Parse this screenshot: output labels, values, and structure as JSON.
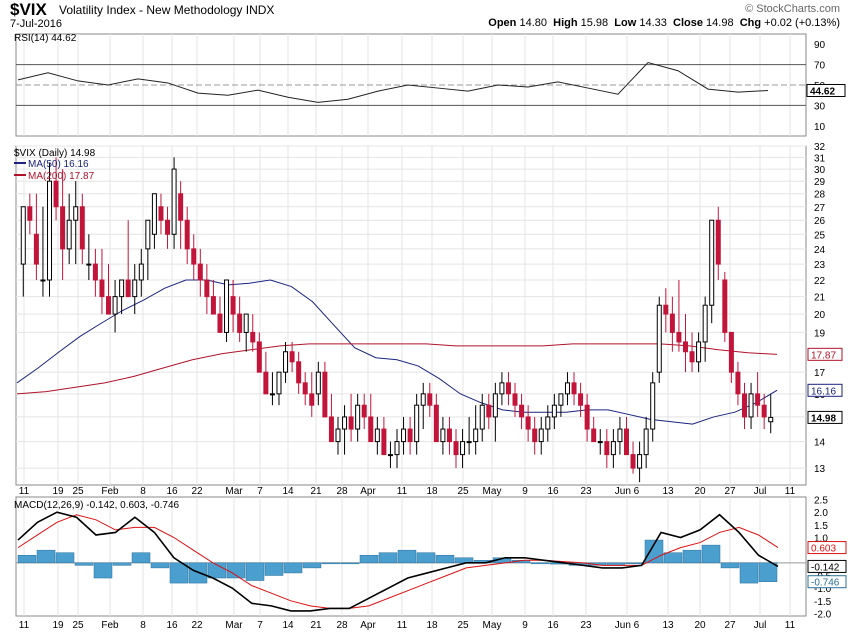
{
  "header": {
    "symbol": "$VIX",
    "name": "Volatility Index - New Methodology  INDX",
    "date": "7-Jul-2016",
    "source": "© StockCharts.com",
    "open_label": "Open",
    "open": "14.80",
    "high_label": "High",
    "high": "15.98",
    "low_label": "Low",
    "low": "14.33",
    "close_label": "Close",
    "close": "14.98",
    "chg_label": "Chg",
    "chg": "+0.02 (+0.13%)"
  },
  "chart_data": [
    {
      "type": "line",
      "legend": "RSI(14) 44.62",
      "y_ticks": [
        10,
        30,
        50,
        70,
        90
      ],
      "ylim": [
        0,
        100
      ],
      "levels": [
        30,
        50,
        70
      ],
      "last_label": "44.62",
      "x": [
        "Jan 11",
        "Jan 19",
        "Jan 25",
        "Feb",
        "Feb 8",
        "Feb 16",
        "Feb 22",
        "Mar",
        "Mar 7",
        "Mar 14",
        "Mar 21",
        "Mar 28",
        "Apr",
        "Apr 11",
        "Apr 18",
        "Apr 25",
        "May",
        "May 9",
        "May 16",
        "May 23",
        "Jun 6",
        "Jun 13",
        "Jun 20",
        "Jun 27",
        "Jul",
        "Jul 7"
      ],
      "values": [
        55,
        62,
        54,
        50,
        56,
        52,
        42,
        40,
        45,
        38,
        33,
        36,
        44,
        50,
        47,
        44,
        50,
        48,
        53,
        47,
        41,
        72,
        64,
        46,
        43,
        44.62
      ]
    },
    {
      "type": "candlestick",
      "legend": "$VIX (Daily) 14.98",
      "y_ticks": [
        13,
        14,
        15,
        16,
        17,
        19,
        20,
        21,
        22,
        23,
        24,
        25,
        26,
        27,
        28,
        29,
        30,
        31,
        32
      ],
      "ylim_log": [
        12.4,
        32
      ],
      "last_label": "14.98",
      "x_ticks": [
        "11",
        "19",
        "25",
        "Feb",
        "8",
        "16",
        "22",
        "Mar",
        "7",
        "14",
        "21",
        "28",
        "Apr",
        "11",
        "18",
        "25",
        "May",
        "9",
        "16",
        "23",
        "Jun 6",
        "13",
        "20",
        "27",
        "Jul",
        "11"
      ],
      "ohlc": [
        [
          23,
          27,
          21,
          27
        ],
        [
          27,
          28,
          25,
          26
        ],
        [
          25,
          28,
          22,
          23
        ],
        [
          22,
          27,
          21,
          22
        ],
        [
          22,
          30.5,
          21,
          29
        ],
        [
          29,
          31,
          26,
          27
        ],
        [
          27,
          30,
          22,
          24
        ],
        [
          24,
          28,
          23,
          26
        ],
        [
          26,
          29,
          23,
          27
        ],
        [
          27,
          28,
          23,
          24
        ],
        [
          23,
          25,
          22,
          23
        ],
        [
          23,
          24,
          21,
          22
        ],
        [
          22,
          24,
          20,
          21
        ],
        [
          21,
          23,
          20,
          20
        ],
        [
          20,
          22,
          19,
          21
        ],
        [
          21,
          22,
          20,
          22
        ],
        [
          22,
          26,
          21,
          21
        ],
        [
          21,
          23,
          20,
          22
        ],
        [
          22,
          24,
          21,
          23
        ],
        [
          24,
          26,
          22,
          26
        ],
        [
          25,
          28,
          24,
          28
        ],
        [
          27,
          28,
          25,
          26
        ],
        [
          26,
          27,
          24,
          25
        ],
        [
          25,
          31,
          24,
          30
        ],
        [
          28,
          29,
          24,
          26
        ],
        [
          26,
          27,
          23,
          24
        ],
        [
          24,
          25,
          22,
          23
        ],
        [
          23,
          24,
          21,
          22
        ],
        [
          22,
          23,
          20,
          21
        ],
        [
          21,
          22,
          20,
          20
        ],
        [
          20,
          21,
          19,
          19
        ],
        [
          19,
          22,
          18.5,
          22
        ],
        [
          21,
          22,
          19,
          20
        ],
        [
          20,
          21,
          18.5,
          19
        ],
        [
          19,
          20,
          18,
          20
        ],
        [
          19,
          20,
          18,
          18.5
        ],
        [
          18.5,
          19,
          17,
          17
        ],
        [
          17,
          18,
          16,
          16
        ],
        [
          16,
          17,
          15.5,
          16
        ],
        [
          16,
          17,
          15.5,
          17
        ],
        [
          17,
          18.5,
          16.5,
          18
        ],
        [
          18,
          18.5,
          17,
          17.5
        ],
        [
          17.5,
          18,
          16,
          16.5
        ],
        [
          16.5,
          17,
          15.5,
          16
        ],
        [
          16,
          17,
          15,
          15.5
        ],
        [
          16,
          17.5,
          15.5,
          17
        ],
        [
          17,
          17.5,
          15,
          15
        ],
        [
          15,
          16,
          14,
          14
        ],
        [
          14,
          15,
          13.5,
          14.5
        ],
        [
          14.5,
          15.5,
          13.5,
          15
        ],
        [
          15,
          16,
          14,
          14.5
        ],
        [
          14.5,
          16,
          14,
          15.5
        ],
        [
          15.5,
          16,
          14.5,
          15
        ],
        [
          15,
          16,
          14,
          14
        ],
        [
          14,
          15,
          13.5,
          14.5
        ],
        [
          14.5,
          15,
          13.5,
          13.5
        ],
        [
          13.5,
          14,
          13,
          13.5
        ],
        [
          13.5,
          14.5,
          13,
          14
        ],
        [
          14,
          15,
          13.5,
          14.5
        ],
        [
          14.5,
          15,
          13.5,
          14
        ],
        [
          14,
          16,
          13.5,
          15.5
        ],
        [
          15.5,
          16.5,
          14.5,
          16
        ],
        [
          16,
          16.5,
          15,
          15.5
        ],
        [
          15.5,
          16,
          14,
          14
        ],
        [
          14,
          15,
          13.5,
          14.5
        ],
        [
          14.5,
          15,
          13.5,
          14
        ],
        [
          14,
          14.5,
          13,
          13.5
        ],
        [
          13.5,
          14.5,
          13,
          14
        ],
        [
          14,
          15,
          13.5,
          14
        ],
        [
          14,
          15.5,
          13.5,
          14.5
        ],
        [
          14.5,
          16,
          14,
          15.5
        ],
        [
          15.5,
          16,
          14.5,
          15
        ],
        [
          15,
          16.5,
          14,
          16
        ],
        [
          16,
          17,
          15.5,
          16.5
        ],
        [
          16.5,
          17,
          15.5,
          16
        ],
        [
          16,
          16.5,
          15,
          15.5
        ],
        [
          15.5,
          16,
          14.5,
          15
        ],
        [
          15,
          15.5,
          14,
          14.5
        ],
        [
          14.5,
          15,
          13.5,
          14
        ],
        [
          14,
          15,
          13.5,
          14.5
        ],
        [
          14.5,
          15.5,
          14,
          15
        ],
        [
          15,
          16,
          14.5,
          15.5
        ],
        [
          15.5,
          16,
          15,
          16
        ],
        [
          16,
          17,
          15.5,
          16.5
        ],
        [
          16.5,
          17,
          15.5,
          16
        ],
        [
          16,
          16.5,
          15,
          15.5
        ],
        [
          15.5,
          16,
          14,
          14.5
        ],
        [
          14.5,
          15,
          14,
          14
        ],
        [
          14,
          14.5,
          13.5,
          14
        ],
        [
          14,
          14.5,
          13,
          13.5
        ],
        [
          13.5,
          14.5,
          13,
          14
        ],
        [
          14,
          15,
          13.5,
          14.5
        ],
        [
          14.5,
          15,
          13.5,
          13.5
        ],
        [
          13.5,
          14,
          12.8,
          13
        ],
        [
          13,
          14,
          12.5,
          13.5
        ],
        [
          13.5,
          15,
          13,
          14.5
        ],
        [
          14.5,
          17,
          14,
          16.5
        ],
        [
          17,
          21,
          16.5,
          20.5
        ],
        [
          20.5,
          21.5,
          19,
          20
        ],
        [
          20,
          21,
          18,
          19
        ],
        [
          19,
          22,
          18,
          18.5
        ],
        [
          18.5,
          20,
          17,
          18
        ],
        [
          18,
          19,
          17,
          17.5
        ],
        [
          17.5,
          19,
          17,
          18.5
        ],
        [
          18.5,
          21,
          17.5,
          20.5
        ],
        [
          20.5,
          26,
          19.5,
          26
        ],
        [
          26,
          27,
          22,
          23
        ],
        [
          22,
          22.5,
          18.5,
          19
        ],
        [
          19,
          19,
          16.5,
          17
        ],
        [
          17,
          17.5,
          15.5,
          16
        ],
        [
          16,
          16.5,
          14.5,
          15
        ],
        [
          15,
          16.5,
          14.5,
          16
        ],
        [
          16,
          17,
          15,
          15.5
        ],
        [
          15.5,
          16,
          14.5,
          15
        ],
        [
          14.8,
          15.98,
          14.33,
          14.98
        ]
      ],
      "series": [
        {
          "name": "MA(50) 16.16",
          "values": [
            16.5,
            17.2,
            18.0,
            18.8,
            19.5,
            20.2,
            20.8,
            21.5,
            22.0,
            22.0,
            21.7,
            21.8,
            22.0,
            21.6,
            20.7,
            19.4,
            18.2,
            17.7,
            17.6,
            17.3,
            16.7,
            16.0,
            15.6,
            15.3,
            15.2,
            15.2,
            15.2,
            15.3,
            15.3,
            15.1,
            14.9,
            14.8,
            14.7,
            15.0,
            15.2,
            15.6,
            16.16
          ]
        },
        {
          "name": "MA(200) 17.87",
          "values": [
            16.0,
            16.1,
            16.3,
            16.5,
            16.8,
            17.2,
            17.6,
            17.9,
            18.1,
            18.3,
            18.4,
            18.4,
            18.4,
            18.4,
            18.4,
            18.3,
            18.3,
            18.3,
            18.3,
            18.4,
            18.4,
            18.4,
            18.4,
            18.3,
            18.1,
            17.95,
            17.87
          ]
        }
      ]
    },
    {
      "type": "line",
      "legend": "MACD(12,26,9) -0.142, 0.603, -0.746",
      "y_ticks": [
        2.5,
        2.0,
        1.5,
        1.0,
        0.5,
        0.0,
        -0.5,
        -1.0,
        -1.5,
        -2.0
      ],
      "ylim": [
        -2.1,
        2.6
      ],
      "last_labels": [
        "0.603",
        "-0.142",
        "-0.746"
      ],
      "series": [
        {
          "name": "MACD",
          "values": [
            0.9,
            1.6,
            2.0,
            1.8,
            1.1,
            1.2,
            1.8,
            1.2,
            0.2,
            -0.3,
            -0.6,
            -1.0,
            -1.6,
            -1.7,
            -1.9,
            -1.9,
            -1.8,
            -1.8,
            -1.4,
            -1.0,
            -0.6,
            -0.4,
            -0.2,
            0.0,
            0.0,
            0.2,
            0.2,
            0.1,
            0.0,
            -0.1,
            -0.2,
            -0.2,
            -0.1,
            1.2,
            1.0,
            1.3,
            1.9,
            1.2,
            0.3,
            -0.142
          ]
        },
        {
          "name": "Signal",
          "values": [
            0.6,
            1.1,
            1.6,
            1.9,
            1.7,
            1.3,
            1.4,
            1.4,
            1.0,
            0.5,
            0.0,
            -0.4,
            -0.9,
            -1.2,
            -1.5,
            -1.7,
            -1.8,
            -1.8,
            -1.7,
            -1.4,
            -1.1,
            -0.8,
            -0.5,
            -0.2,
            -0.1,
            0.0,
            0.1,
            0.1,
            0.05,
            0.0,
            -0.1,
            -0.1,
            -0.1,
            0.3,
            0.6,
            0.8,
            1.2,
            1.4,
            1.1,
            0.603
          ]
        },
        {
          "name": "Histogram",
          "values": [
            0.3,
            0.5,
            0.4,
            -0.1,
            -0.6,
            -0.1,
            0.4,
            -0.2,
            -0.8,
            -0.8,
            -0.6,
            -0.6,
            -0.7,
            -0.5,
            -0.4,
            -0.2,
            0.0,
            0.0,
            0.3,
            0.4,
            0.5,
            0.4,
            0.3,
            0.2,
            0.1,
            0.2,
            0.1,
            0.0,
            -0.05,
            -0.1,
            -0.1,
            -0.1,
            0.0,
            0.9,
            0.4,
            0.5,
            0.7,
            -0.2,
            -0.8,
            -0.746
          ]
        }
      ]
    }
  ]
}
